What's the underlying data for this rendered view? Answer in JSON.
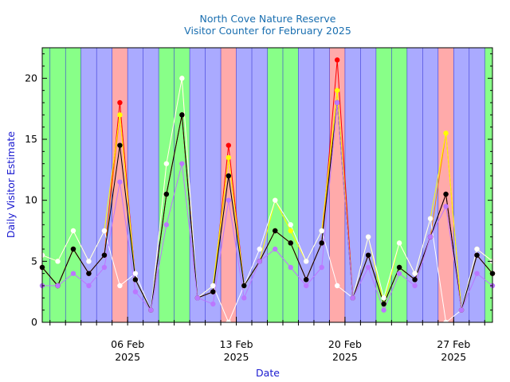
{
  "chart_data": {
    "type": "line",
    "title": "North Cove Nature Reserve",
    "subtitle": "Visitor Counter for February 2025",
    "xlabel": "Date",
    "ylabel": "Daily Visitor Estimate",
    "ylim": [
      0,
      22.5
    ],
    "xlim": [
      "2025-01-31T12:00",
      "2025-03-01T12:00"
    ],
    "yticks": [
      0,
      5,
      10,
      15,
      20
    ],
    "xticks": [
      {
        "date": "2025-02-06",
        "label1": "06 Feb",
        "label2": "2025"
      },
      {
        "date": "2025-02-13",
        "label1": "13 Feb",
        "label2": "2025"
      },
      {
        "date": "2025-02-20",
        "label1": "20 Feb",
        "label2": "2025"
      },
      {
        "date": "2025-02-27",
        "label1": "27 Feb",
        "label2": "2025"
      }
    ],
    "day_bands": [
      {
        "start": "2025-01-31T12:00",
        "end": "2025-02-01",
        "color": "#88ff88"
      },
      {
        "start": "2025-02-01",
        "end": "2025-02-03",
        "color": "#88ff88"
      },
      {
        "start": "2025-02-03",
        "end": "2025-02-05",
        "color": "#aaaaff"
      },
      {
        "start": "2025-02-05",
        "end": "2025-02-06",
        "color": "#ffaaaa"
      },
      {
        "start": "2025-02-06",
        "end": "2025-02-08",
        "color": "#aaaaff"
      },
      {
        "start": "2025-02-08",
        "end": "2025-02-10",
        "color": "#88ff88"
      },
      {
        "start": "2025-02-10",
        "end": "2025-02-12",
        "color": "#aaaaff"
      },
      {
        "start": "2025-02-12",
        "end": "2025-02-13",
        "color": "#ffaaaa"
      },
      {
        "start": "2025-02-13",
        "end": "2025-02-15",
        "color": "#aaaaff"
      },
      {
        "start": "2025-02-15",
        "end": "2025-02-17",
        "color": "#88ff88"
      },
      {
        "start": "2025-02-17",
        "end": "2025-02-19",
        "color": "#aaaaff"
      },
      {
        "start": "2025-02-19",
        "end": "2025-02-20",
        "color": "#ffaaaa"
      },
      {
        "start": "2025-02-20",
        "end": "2025-02-22",
        "color": "#aaaaff"
      },
      {
        "start": "2025-02-22",
        "end": "2025-02-24",
        "color": "#88ff88"
      },
      {
        "start": "2025-02-24",
        "end": "2025-02-26",
        "color": "#aaaaff"
      },
      {
        "start": "2025-02-26",
        "end": "2025-02-27",
        "color": "#ffaaaa"
      },
      {
        "start": "2025-02-27",
        "end": "2025-03-01",
        "color": "#aaaaff"
      },
      {
        "start": "2025-03-01",
        "end": "2025-03-01T12:00",
        "color": "#88ff88"
      }
    ],
    "x": [
      "2025-01-31T12:00",
      "2025-02-01T12:00",
      "2025-02-02T12:00",
      "2025-02-03T12:00",
      "2025-02-04T12:00",
      "2025-02-05T12:00",
      "2025-02-06T12:00",
      "2025-02-07T12:00",
      "2025-02-08T12:00",
      "2025-02-09T12:00",
      "2025-02-10T12:00",
      "2025-02-11T12:00",
      "2025-02-12T12:00",
      "2025-02-13T12:00",
      "2025-02-14T12:00",
      "2025-02-15T12:00",
      "2025-02-16T12:00",
      "2025-02-17T12:00",
      "2025-02-18T12:00",
      "2025-02-19T12:00",
      "2025-02-20T12:00",
      "2025-02-21T12:00",
      "2025-02-22T12:00",
      "2025-02-23T12:00",
      "2025-02-24T12:00",
      "2025-02-25T12:00",
      "2025-02-26T12:00",
      "2025-02-27T12:00",
      "2025-02-28T12:00",
      "2025-03-01T12:00"
    ],
    "series": [
      {
        "color": "#ff0000",
        "marker": true,
        "values": [
          4.5,
          3,
          6,
          4,
          5.5,
          18,
          3.5,
          1,
          10.5,
          17,
          2,
          2.5,
          14.5,
          3,
          5,
          7.5,
          6.5,
          3.5,
          6.5,
          21.5,
          2,
          5.5,
          1.5,
          4.5,
          3.5,
          7,
          10.5,
          1,
          5.5,
          4
        ]
      },
      {
        "color": "#ff8800",
        "marker": false,
        "values": [
          4.5,
          3,
          6,
          4,
          5.5,
          17,
          3.5,
          1,
          10.5,
          17,
          2,
          2.5,
          13.5,
          3,
          5,
          7.5,
          6.5,
          3.5,
          6.5,
          19,
          2,
          5.5,
          1.5,
          4.5,
          3.5,
          7,
          15.5,
          1,
          5.5,
          4
        ]
      },
      {
        "color": "#ffff00",
        "marker": true,
        "values": [
          5.5,
          5,
          7.5,
          5,
          7.5,
          17,
          3.5,
          1,
          13,
          20,
          2,
          3,
          13.5,
          3,
          5,
          10,
          7.5,
          5,
          7.5,
          19,
          2,
          7,
          1.5,
          6.5,
          4,
          8.5,
          15.5,
          1,
          6,
          5
        ]
      },
      {
        "color": "#ffffff",
        "marker": true,
        "values": [
          5.5,
          5,
          7.5,
          5,
          7.5,
          3,
          4,
          1,
          13,
          20,
          2,
          3,
          0,
          3,
          6,
          10,
          8,
          5,
          7.5,
          3,
          2,
          7,
          2,
          6.5,
          4,
          8.5,
          0,
          1,
          6,
          5
        ]
      },
      {
        "color": "#000000",
        "marker": true,
        "values": [
          4.5,
          3,
          6,
          4,
          5.5,
          14.5,
          3.5,
          1,
          10.5,
          17,
          2,
          2.5,
          12,
          3,
          5,
          7.5,
          6.5,
          3.5,
          6.5,
          18,
          2,
          5.5,
          1.5,
          4.5,
          3.5,
          7,
          10.5,
          1,
          5.5,
          4
        ]
      },
      {
        "color": "#bb77ff",
        "marker": true,
        "values": [
          3,
          3,
          4,
          3,
          4.5,
          11.5,
          2.5,
          1,
          8,
          13,
          2,
          1.5,
          10,
          2,
          5,
          6,
          4.5,
          3,
          4.5,
          18,
          2,
          4.5,
          1,
          4,
          3,
          7,
          9.5,
          1,
          4,
          3
        ]
      }
    ]
  }
}
